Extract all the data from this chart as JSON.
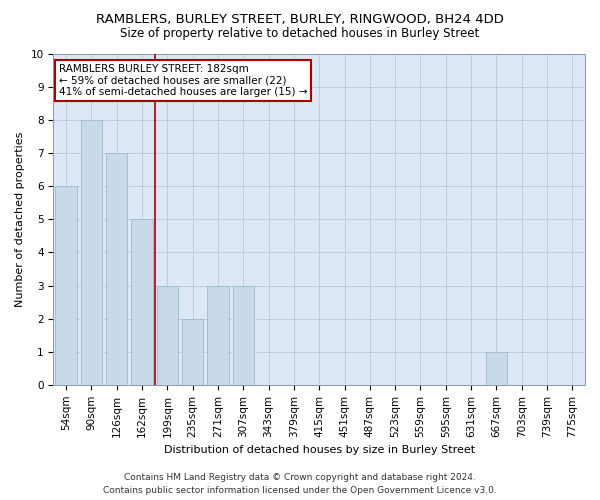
{
  "title": "RAMBLERS, BURLEY STREET, BURLEY, RINGWOOD, BH24 4DD",
  "subtitle": "Size of property relative to detached houses in Burley Street",
  "xlabel": "Distribution of detached houses by size in Burley Street",
  "ylabel": "Number of detached properties",
  "categories": [
    "54sqm",
    "90sqm",
    "126sqm",
    "162sqm",
    "199sqm",
    "235sqm",
    "271sqm",
    "307sqm",
    "343sqm",
    "379sqm",
    "415sqm",
    "451sqm",
    "487sqm",
    "523sqm",
    "559sqm",
    "595sqm",
    "631sqm",
    "667sqm",
    "703sqm",
    "739sqm",
    "775sqm"
  ],
  "bar_values": [
    6,
    8,
    7,
    5,
    3,
    2,
    3,
    3,
    0,
    0,
    0,
    0,
    0,
    0,
    0,
    0,
    0,
    1,
    0,
    0,
    0
  ],
  "bar_color": "#c8d9ea",
  "bar_edgecolor": "#a0b8d0",
  "vline_color": "#aa0000",
  "annotation_text": "RAMBLERS BURLEY STREET: 182sqm\n← 59% of detached houses are smaller (22)\n41% of semi-detached houses are larger (15) →",
  "annotation_box_color": "#ffffff",
  "annotation_box_edgecolor": "#aa0000",
  "ylim": [
    0,
    10
  ],
  "yticks": [
    0,
    1,
    2,
    3,
    4,
    5,
    6,
    7,
    8,
    9,
    10
  ],
  "footer_line1": "Contains HM Land Registry data © Crown copyright and database right 2024.",
  "footer_line2": "Contains public sector information licensed under the Open Government Licence v3.0.",
  "bg_color": "#dce8f5",
  "grid_color": "#b8c8d8",
  "title_fontsize": 9.5,
  "subtitle_fontsize": 8.5,
  "xlabel_fontsize": 8,
  "ylabel_fontsize": 8,
  "tick_fontsize": 7.5,
  "annot_fontsize": 7.5,
  "footer_fontsize": 6.5,
  "bar_width": 0.85,
  "vline_x": 3.5
}
